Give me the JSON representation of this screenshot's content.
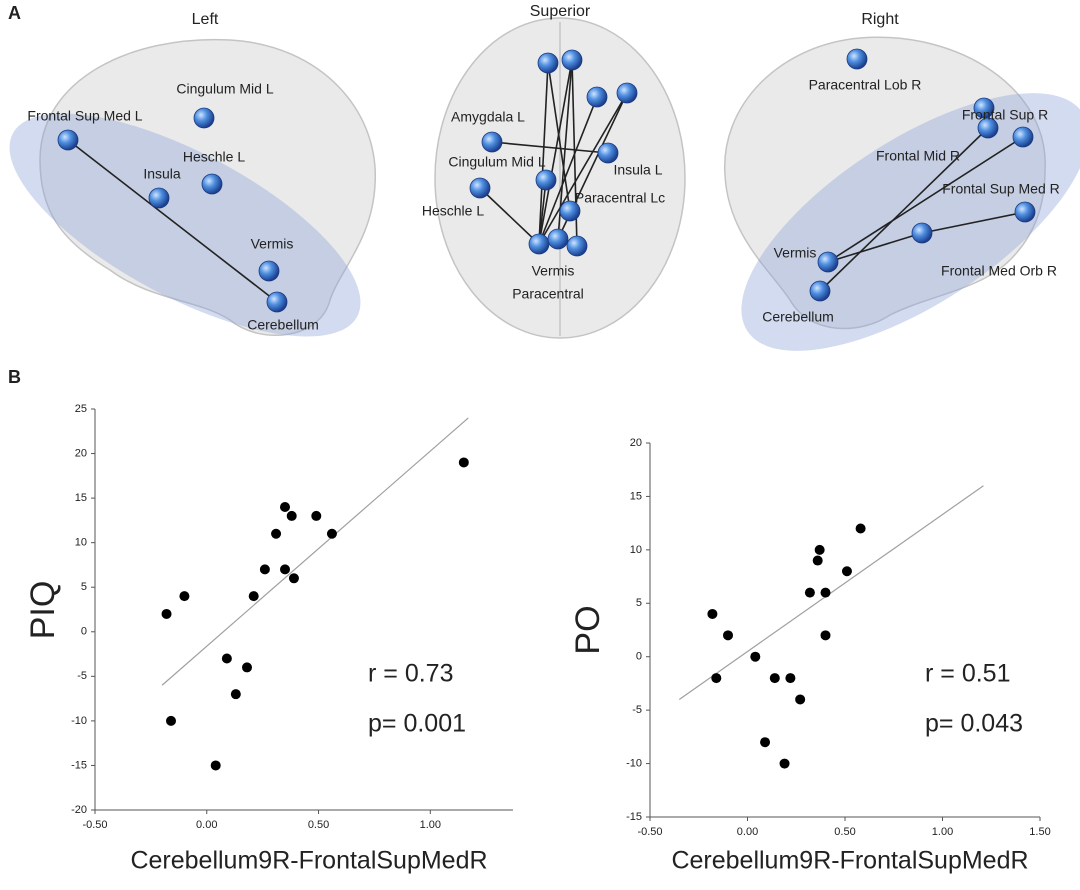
{
  "figure_a": {
    "label": "A",
    "views": [
      {
        "title": "Left",
        "nodes": [
          "Frontal Sup Med L",
          "Cingulum Mid L",
          "Heschle L",
          "Insula",
          "Vermis",
          "Cerebellum"
        ]
      },
      {
        "title": "Superior",
        "nodes": [
          "Amygdala L",
          "Cingulum Mid L",
          "Insula L",
          "Heschle L",
          "Paracentral Lc",
          "Vermis",
          "Paracentral"
        ]
      },
      {
        "title": "Right",
        "nodes": [
          "Paracentral Lob R",
          "Frontal Sup R",
          "Frontal Mid R",
          "Frontal Sup Med R",
          "Vermis",
          "Frontal Med Orb R",
          "Cerebellum"
        ]
      }
    ]
  },
  "figure_b": {
    "label": "B"
  },
  "chart_data": [
    {
      "type": "scatter",
      "x_label": "Cerebellum9R-FrontalSupMedR",
      "y_label": "PIQ",
      "x": [
        -0.18,
        -0.1,
        -0.16,
        0.04,
        0.09,
        0.13,
        0.18,
        0.21,
        0.26,
        0.31,
        0.35,
        0.35,
        0.38,
        0.39,
        0.49,
        0.56,
        1.15
      ],
      "values": [
        2,
        4,
        -10,
        -15,
        -3,
        -7,
        -4,
        4,
        7,
        11,
        14,
        7,
        13,
        6,
        13,
        11,
        19
      ],
      "fit": {
        "x": [
          -0.2,
          1.17
        ],
        "values": [
          -6,
          24
        ]
      },
      "xlim": [
        -0.5,
        1.37
      ],
      "xticks": [
        {
          "value": -0.5,
          "label": "-0.50"
        },
        {
          "value": 0,
          "label": "0.00"
        },
        {
          "value": 0.5,
          "label": "0.50"
        },
        {
          "value": 1,
          "label": "1.00"
        }
      ],
      "ylim": [
        -20,
        25
      ],
      "yticks": [
        -20,
        -15,
        -10,
        -5,
        0,
        5,
        10,
        15,
        20,
        25
      ],
      "annotations": [
        "r = 0.73",
        "p= 0.001"
      ],
      "color": "#000000",
      "fit_color": "#a0a0a0"
    },
    {
      "type": "scatter",
      "x_label": "Cerebellum9R-FrontalSupMedR",
      "y_label": "PO",
      "x": [
        -0.18,
        -0.1,
        -0.16,
        0.04,
        0.09,
        0.14,
        0.19,
        0.22,
        0.27,
        0.32,
        0.37,
        0.36,
        0.4,
        0.4,
        0.51,
        0.58
      ],
      "values": [
        4,
        2,
        -2,
        0,
        -8,
        -2,
        -10,
        -2,
        -4,
        6,
        10,
        9,
        6,
        2,
        8,
        12
      ],
      "fit": {
        "x": [
          -0.35,
          1.21
        ],
        "values": [
          -4,
          16
        ]
      },
      "xlim": [
        -0.5,
        1.5
      ],
      "xticks": [
        {
          "value": -0.5,
          "label": "-0.50"
        },
        {
          "value": 0,
          "label": "0.00"
        },
        {
          "value": 0.5,
          "label": "0.50"
        },
        {
          "value": 1,
          "label": "1.00"
        },
        {
          "value": 1.5,
          "label": "1.50"
        }
      ],
      "ylim": [
        -15,
        20
      ],
      "yticks": [
        -15,
        -10,
        -5,
        0,
        5,
        10,
        15,
        20
      ],
      "annotations": [
        "r = 0.51",
        "p= 0.043"
      ],
      "color": "#000000",
      "fit_color": "#a0a0a0"
    }
  ]
}
